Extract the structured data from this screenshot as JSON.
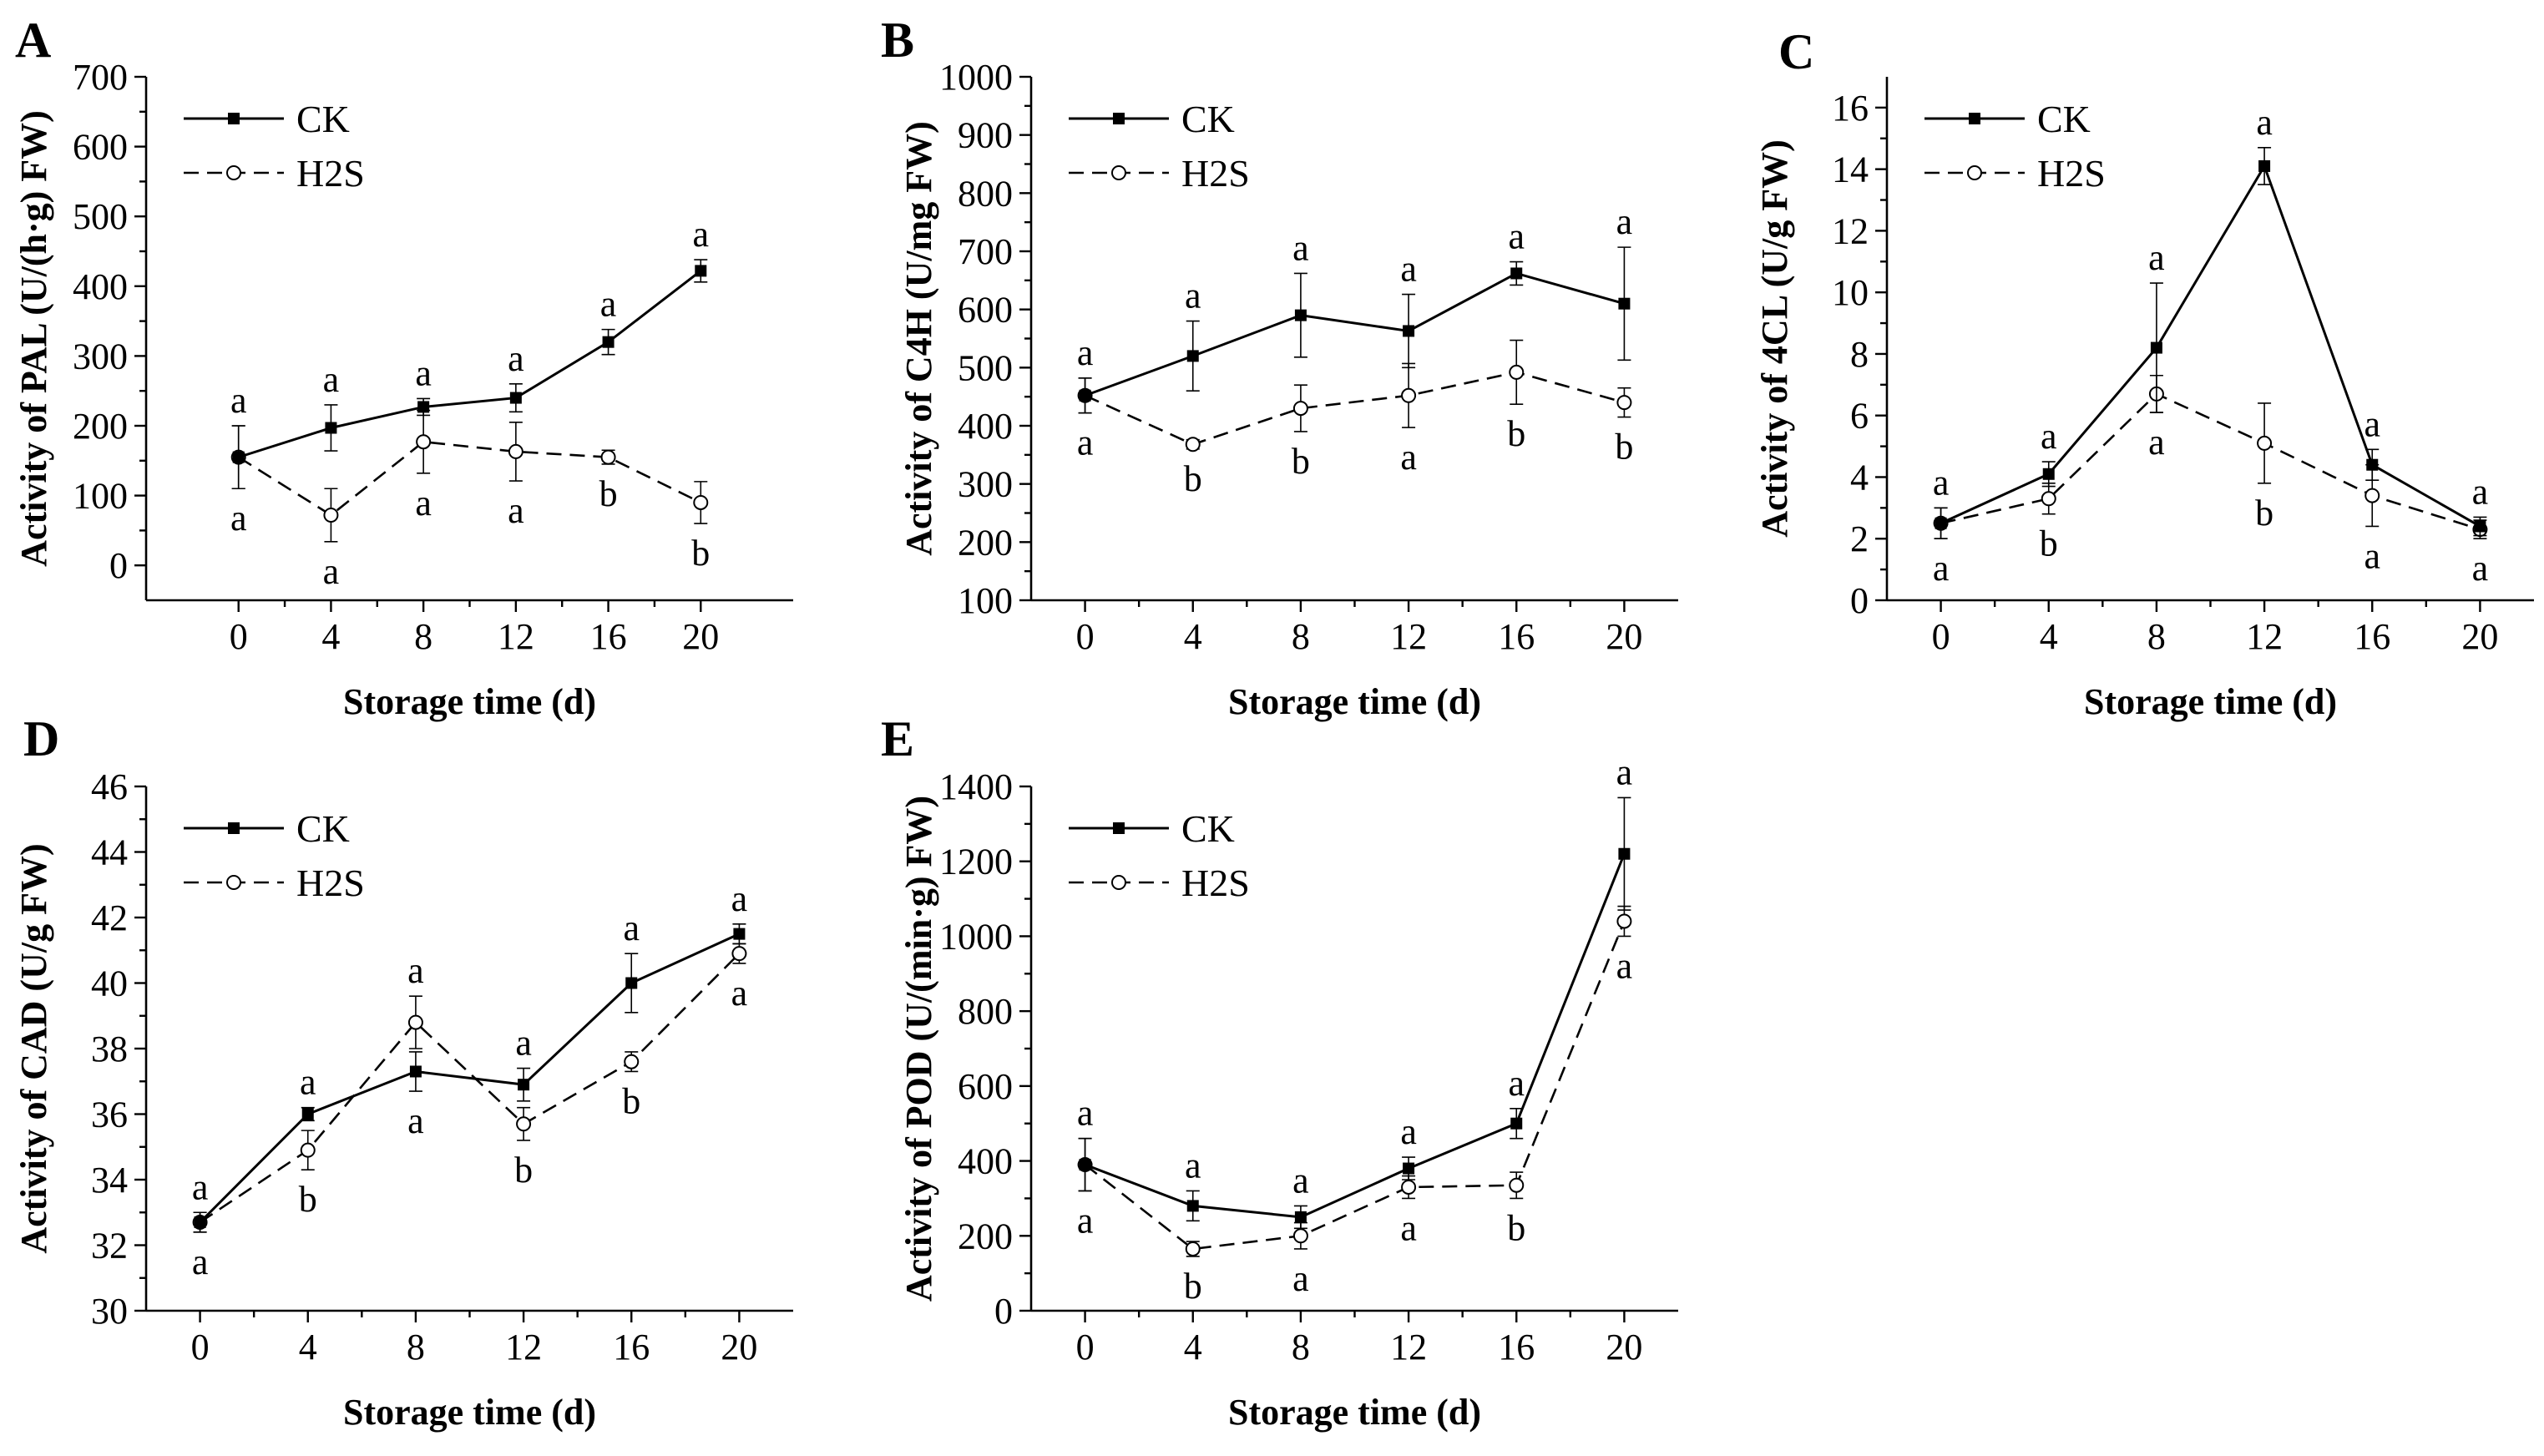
{
  "chart_data": [
    {
      "id": "A",
      "type": "line",
      "panel_label": "A",
      "xlabel": "Storage time (d)",
      "ylabel": "Activity of PAL (U/(h·g) FW)",
      "categories": [
        0,
        4,
        8,
        12,
        16,
        20
      ],
      "xlim": [
        -4,
        24
      ],
      "ylim": [
        -50,
        700
      ],
      "yticks": [
        0,
        100,
        200,
        300,
        400,
        500,
        600,
        700
      ],
      "legend": "top-left",
      "series": [
        {
          "name": "CK",
          "style": "solid",
          "marker": "filled-square",
          "values": [
            155,
            197,
            227,
            240,
            320,
            422
          ],
          "errors": [
            45,
            33,
            12,
            20,
            18,
            16
          ],
          "letters": [
            "a",
            "a",
            "a",
            "a",
            "a",
            "a"
          ]
        },
        {
          "name": "H2S",
          "style": "dashed",
          "marker": "open-circle",
          "values": [
            155,
            72,
            177,
            163,
            155,
            90
          ],
          "errors": [
            45,
            38,
            45,
            42,
            10,
            30
          ],
          "letters": [
            "a",
            "a",
            "a",
            "a",
            "b",
            "b"
          ]
        }
      ]
    },
    {
      "id": "B",
      "type": "line",
      "panel_label": "B",
      "xlabel": "Storage time (d)",
      "ylabel": "Activity of C4H (U/mg FW)",
      "categories": [
        0,
        4,
        8,
        12,
        16,
        20
      ],
      "xlim": [
        -2,
        22
      ],
      "ylim": [
        100,
        1000
      ],
      "yticks": [
        100,
        200,
        300,
        400,
        500,
        600,
        700,
        800,
        900,
        1000
      ],
      "legend": "top-left",
      "series": [
        {
          "name": "CK",
          "style": "solid",
          "marker": "filled-square",
          "values": [
            452,
            520,
            590,
            563,
            662,
            610
          ],
          "errors": [
            30,
            60,
            72,
            63,
            20,
            97
          ],
          "letters": [
            "a",
            "a",
            "a",
            "a",
            "a",
            "a"
          ]
        },
        {
          "name": "H2S",
          "style": "dashed",
          "marker": "open-circle",
          "values": [
            452,
            368,
            430,
            452,
            492,
            440
          ],
          "errors": [
            30,
            8,
            40,
            55,
            55,
            25
          ],
          "letters": [
            "a",
            "b",
            "b",
            "a",
            "b",
            "b"
          ]
        }
      ]
    },
    {
      "id": "C",
      "type": "line",
      "panel_label": "C",
      "xlabel": "Storage time (d)",
      "ylabel": "Activity of 4CL (U/g FW)",
      "categories": [
        0,
        4,
        8,
        12,
        16,
        20
      ],
      "xlim": [
        -2,
        22
      ],
      "ylim": [
        0,
        17
      ],
      "yticks": [
        0,
        2,
        4,
        6,
        8,
        10,
        12,
        14,
        16
      ],
      "legend": "top-left",
      "series": [
        {
          "name": "CK",
          "style": "solid",
          "marker": "filled-square",
          "values": [
            2.5,
            4.1,
            8.2,
            14.1,
            4.4,
            2.4
          ],
          "errors": [
            0.5,
            0.4,
            2.1,
            0.6,
            0.5,
            0.3
          ],
          "letters": [
            "a",
            "a",
            "a",
            "a",
            "a",
            "a"
          ]
        },
        {
          "name": "H2S",
          "style": "dashed",
          "marker": "open-circle",
          "values": [
            2.5,
            3.3,
            6.7,
            5.1,
            3.4,
            2.3
          ],
          "errors": [
            0.5,
            0.5,
            0.6,
            1.3,
            1.0,
            0.3
          ],
          "letters": [
            "a",
            "b",
            "a",
            "b",
            "a",
            "a"
          ]
        }
      ]
    },
    {
      "id": "D",
      "type": "line",
      "panel_label": "D",
      "xlabel": "Storage time (d)",
      "ylabel": "Activity of CAD (U/g FW)",
      "categories": [
        0,
        4,
        8,
        12,
        16,
        20
      ],
      "xlim": [
        -2,
        22
      ],
      "ylim": [
        30,
        46
      ],
      "yticks": [
        30,
        32,
        34,
        36,
        38,
        40,
        42,
        44,
        46
      ],
      "legend": "top-left",
      "series": [
        {
          "name": "CK",
          "style": "solid",
          "marker": "filled-square",
          "values": [
            32.7,
            36.0,
            37.3,
            36.9,
            40.0,
            41.5
          ],
          "errors": [
            0.3,
            0.2,
            0.6,
            0.5,
            0.9,
            0.3
          ],
          "letters": [
            "a",
            "a",
            "a",
            "a",
            "a",
            "a"
          ]
        },
        {
          "name": "H2S",
          "style": "dashed",
          "marker": "open-circle",
          "values": [
            32.7,
            34.9,
            38.8,
            35.7,
            37.6,
            40.9
          ],
          "errors": [
            0.3,
            0.6,
            0.8,
            0.5,
            0.3,
            0.3
          ],
          "letters": [
            "a",
            "b",
            "a",
            "b",
            "b",
            "a"
          ]
        }
      ]
    },
    {
      "id": "E",
      "type": "line",
      "panel_label": "E",
      "xlabel": "Storage time (d)",
      "ylabel": "Activity of POD (U/(min·g) FW)",
      "categories": [
        0,
        4,
        8,
        12,
        16,
        20
      ],
      "xlim": [
        -2,
        22
      ],
      "ylim": [
        0,
        1400
      ],
      "yticks": [
        0,
        200,
        400,
        600,
        800,
        1000,
        1200,
        1400
      ],
      "legend": "top-left",
      "series": [
        {
          "name": "CK",
          "style": "solid",
          "marker": "filled-square",
          "values": [
            390,
            280,
            250,
            380,
            500,
            1220
          ],
          "errors": [
            70,
            40,
            30,
            30,
            40,
            150
          ],
          "letters": [
            "a",
            "a",
            "a",
            "a",
            "a",
            "a"
          ]
        },
        {
          "name": "H2S",
          "style": "dashed",
          "marker": "open-circle",
          "values": [
            390,
            165,
            200,
            330,
            335,
            1040
          ],
          "errors": [
            70,
            20,
            35,
            30,
            35,
            40
          ],
          "letters": [
            "a",
            "b",
            "a",
            "a",
            "b",
            "a"
          ]
        }
      ]
    }
  ]
}
